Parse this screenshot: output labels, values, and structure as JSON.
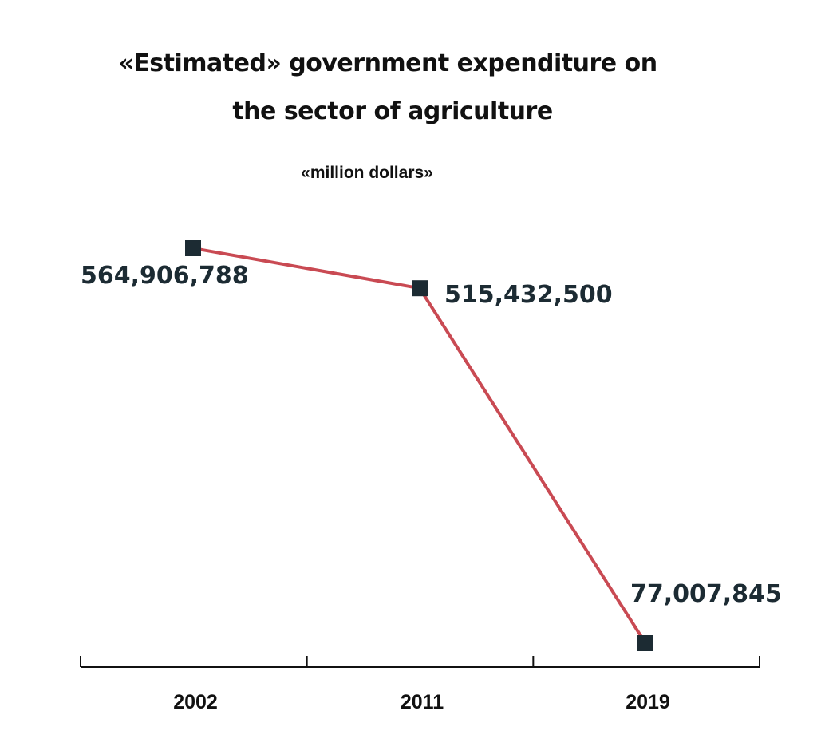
{
  "chart_data": {
    "type": "line",
    "title": [
      "«Estimated» government expenditure on",
      "the sector of agriculture"
    ],
    "subtitle": "«million dollars»",
    "xlabel": "",
    "ylabel": "",
    "categories": [
      "2002",
      "2011",
      "2019"
    ],
    "values": [
      564906788,
      515432500,
      77007845
    ],
    "data_labels": [
      "564,906,788",
      "515,432,500",
      "77,007,845"
    ],
    "grid": false,
    "legend": "none",
    "line_color": "#c94a53",
    "marker_color": "#1c2b33",
    "axis_color": "#111111"
  }
}
